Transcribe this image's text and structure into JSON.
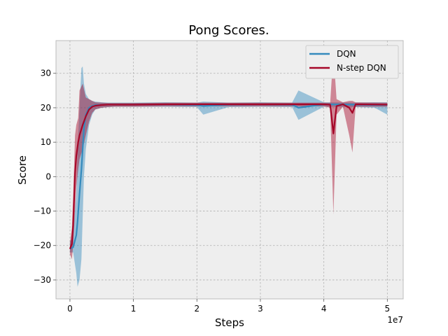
{
  "chart_data": {
    "type": "line",
    "title": "Pong Scores.",
    "xlabel": "Steps",
    "ylabel": "Score",
    "x_multiplier_label": "1e7",
    "xlim": [
      -0.22,
      5.25
    ],
    "ylim": [
      -35.5,
      39.5
    ],
    "x_ticks": [
      0,
      1,
      2,
      3,
      4,
      5
    ],
    "y_ticks": [
      -30,
      -20,
      -10,
      0,
      10,
      20,
      30
    ],
    "grid": true,
    "legend_position": "top-right",
    "series": [
      {
        "name": "DQN",
        "color": "#348ABD",
        "x": [
          0.0,
          0.05,
          0.1,
          0.12,
          0.15,
          0.18,
          0.2,
          0.22,
          0.25,
          0.3,
          0.35,
          0.4,
          0.5,
          0.6,
          0.7,
          1.0,
          1.5,
          2.0,
          2.1,
          2.5,
          3.0,
          3.5,
          3.6,
          4.0,
          4.5,
          4.8,
          5.0
        ],
        "y": [
          -21.0,
          -20.5,
          -17.0,
          -13.0,
          -5.0,
          2.0,
          8.0,
          14.0,
          18.0,
          20.0,
          20.5,
          20.8,
          20.8,
          20.9,
          20.9,
          20.9,
          21.0,
          20.8,
          20.5,
          20.9,
          21.0,
          20.9,
          20.0,
          21.0,
          20.9,
          20.8,
          20.8
        ],
        "band_low": [
          -22.0,
          -22.0,
          -28.0,
          -32.0,
          -30.0,
          -24.0,
          -12.0,
          0.0,
          8.0,
          15.0,
          18.0,
          19.5,
          20.0,
          20.2,
          20.3,
          20.3,
          20.3,
          20.2,
          18.0,
          20.2,
          20.3,
          20.2,
          16.5,
          20.3,
          20.2,
          20.0,
          18.0
        ],
        "band_high": [
          -19.0,
          -17.0,
          -5.0,
          8.0,
          20.0,
          31.5,
          32.0,
          27.0,
          24.0,
          22.5,
          22.0,
          21.8,
          21.6,
          21.5,
          21.5,
          21.5,
          21.6,
          21.5,
          21.8,
          21.5,
          21.6,
          21.5,
          25.0,
          21.6,
          21.5,
          21.6,
          21.6
        ]
      },
      {
        "name": "N-step DQN",
        "color": "#A60628",
        "x": [
          0.0,
          0.03,
          0.05,
          0.08,
          0.1,
          0.13,
          0.15,
          0.2,
          0.25,
          0.3,
          0.35,
          0.4,
          0.5,
          0.6,
          0.7,
          1.0,
          1.5,
          2.0,
          2.5,
          3.0,
          3.5,
          4.0,
          4.1,
          4.15,
          4.2,
          4.3,
          4.4,
          4.45,
          4.5,
          5.0
        ],
        "y": [
          -21.0,
          -19.5,
          -14.0,
          1.0,
          6.0,
          10.0,
          12.0,
          15.0,
          17.5,
          19.5,
          20.3,
          20.6,
          20.8,
          20.9,
          20.9,
          20.9,
          21.0,
          21.0,
          21.0,
          21.0,
          21.0,
          21.0,
          20.9,
          12.5,
          20.5,
          21.0,
          20.0,
          18.5,
          21.0,
          20.9
        ],
        "band_low": [
          -22.5,
          -24.0,
          -20.0,
          -10.0,
          -3.0,
          2.0,
          5.0,
          8.0,
          12.0,
          16.0,
          18.5,
          19.5,
          20.0,
          20.2,
          20.3,
          20.3,
          20.4,
          20.4,
          20.4,
          20.4,
          20.4,
          20.4,
          20.0,
          -11.0,
          18.0,
          20.3,
          12.0,
          7.0,
          20.3,
          20.3
        ],
        "band_high": [
          -19.0,
          -15.0,
          -6.0,
          12.0,
          15.0,
          17.0,
          25.0,
          27.0,
          23.0,
          22.5,
          22.0,
          21.6,
          21.5,
          21.4,
          21.4,
          21.4,
          21.5,
          21.5,
          21.5,
          21.5,
          21.5,
          21.5,
          21.5,
          36.0,
          22.5,
          21.6,
          22.0,
          22.0,
          21.6,
          21.5
        ]
      }
    ]
  }
}
